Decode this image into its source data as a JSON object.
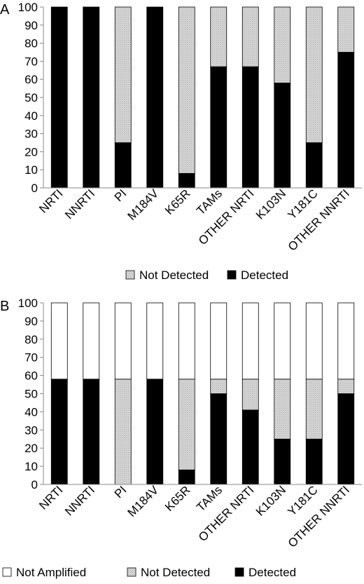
{
  "chart_data": [
    {
      "panel": "A",
      "type": "bar",
      "stacked": true,
      "categories": [
        "NRTI",
        "NNRTI",
        "PI",
        "M184V",
        "K65R",
        "TAMs",
        "OTHER NRTI",
        "K103N",
        "Y181C",
        "OTHER NNRTI"
      ],
      "series": [
        {
          "name": "Not Detected",
          "color": "#cfcfcf",
          "pattern": "dotted-gray",
          "values": [
            0,
            0,
            75,
            0,
            92,
            33,
            33,
            42,
            75,
            25
          ]
        },
        {
          "name": "Detected",
          "color": "#000000",
          "values": [
            100,
            100,
            25,
            100,
            8,
            67,
            67,
            58,
            25,
            75
          ]
        }
      ],
      "ylim": [
        0,
        100
      ],
      "yticks": [
        "0",
        "10",
        "20",
        "30",
        "40",
        "50",
        "60",
        "70",
        "80",
        "90",
        "100"
      ],
      "grid": false,
      "legend_position": "bottom"
    },
    {
      "panel": "B",
      "type": "bar",
      "stacked": true,
      "categories": [
        "NRTI",
        "NNRTI",
        "PI",
        "M184V",
        "K65R",
        "TAMs",
        "OTHER NRTI",
        "K103N",
        "Y181C",
        "OTHER NNRTI"
      ],
      "series": [
        {
          "name": "Not Amplified",
          "color": "#ffffff",
          "values": [
            42,
            42,
            42,
            42,
            42,
            42,
            42,
            42,
            42,
            42
          ]
        },
        {
          "name": "Not Detected",
          "color": "#cfcfcf",
          "pattern": "dotted-gray",
          "values": [
            0,
            0,
            58,
            0,
            50,
            8,
            17,
            33,
            33,
            8
          ]
        },
        {
          "name": "Detected",
          "color": "#000000",
          "values": [
            58,
            58,
            0,
            58,
            8,
            50,
            41,
            25,
            25,
            50
          ]
        }
      ],
      "ylim": [
        0,
        100
      ],
      "yticks": [
        "0",
        "10",
        "20",
        "30",
        "40",
        "50",
        "60",
        "70",
        "80",
        "90",
        "100"
      ],
      "grid": false,
      "legend_position": "bottom"
    }
  ]
}
